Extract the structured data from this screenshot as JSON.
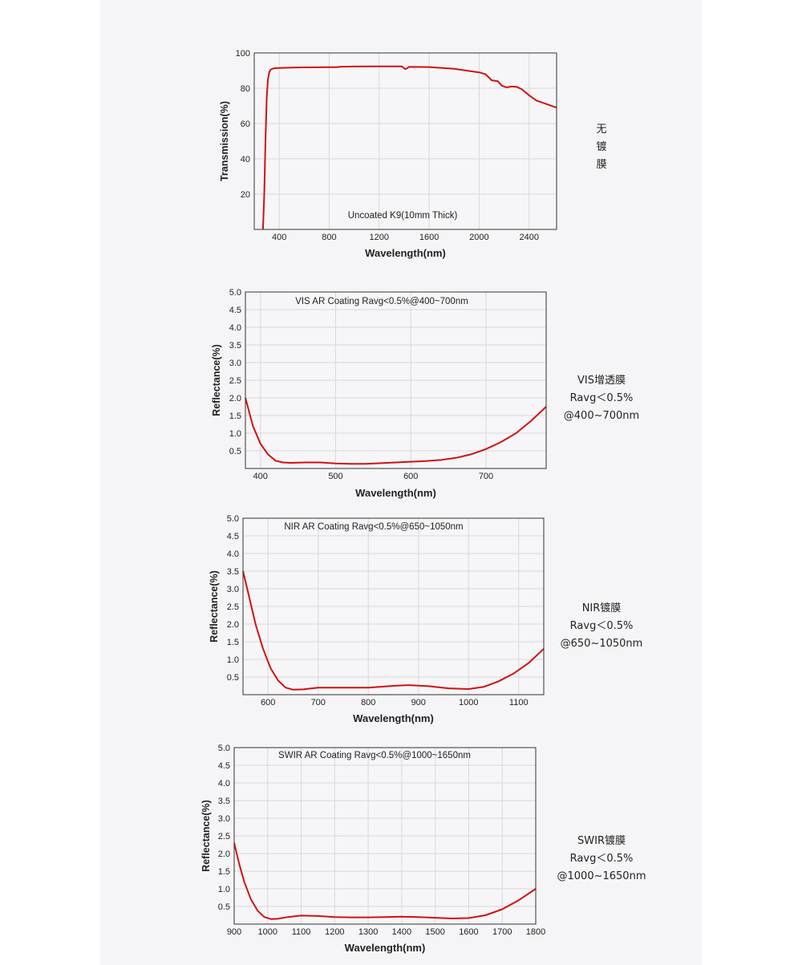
{
  "colors": {
    "panel": "#f5f5f7",
    "plot_bg": "#f6f6f8",
    "grid": "#d8d8dc",
    "series": "#d31010",
    "frame": "#333333"
  },
  "sections": [
    {
      "side_label": [
        "无",
        "镀",
        "膜"
      ]
    },
    {
      "side_label": [
        "VIS增透膜",
        "Ravg＜0.5%",
        "@400~700nm"
      ]
    },
    {
      "side_label": [
        "NIR镀膜",
        "Ravg＜0.5%",
        "@650~1050nm"
      ]
    },
    {
      "side_label": [
        "SWIR镀膜",
        "Ravg＜0.5%",
        "@1000~1650nm"
      ]
    }
  ],
  "chart_data": [
    {
      "type": "line",
      "title": "Uncoated K9(10mm Thick)",
      "xlabel": "Wavelength(nm)",
      "ylabel": "Transmission(%)",
      "xlim": [
        200,
        2620
      ],
      "ylim": [
        0,
        100
      ],
      "xticks": [
        400,
        800,
        1200,
        1600,
        2000,
        2400
      ],
      "xtick_labels": [
        "400",
        "800",
        "1200",
        "1600",
        "2000",
        "2400"
      ],
      "yticks": [
        20,
        40,
        60,
        80,
        100
      ],
      "ytick_labels": [
        "20",
        "40",
        "60",
        "80",
        "100"
      ],
      "grid": true,
      "series": [
        {
          "name": "Uncoated K9",
          "x": [
            270,
            280,
            290,
            300,
            310,
            320,
            330,
            345,
            360,
            400,
            500,
            600,
            800,
            870,
            880,
            1000,
            1200,
            1380,
            1410,
            1440,
            1600,
            1800,
            1900,
            2000,
            2050,
            2080,
            2100,
            2150,
            2180,
            2220,
            2260,
            2300,
            2340,
            2400,
            2460,
            2520,
            2620
          ],
          "y": [
            0,
            20,
            50,
            75,
            85,
            89,
            90.5,
            91,
            91.3,
            91.5,
            91.7,
            91.8,
            91.9,
            91.9,
            92.2,
            92.3,
            92.4,
            92.4,
            90.8,
            92.1,
            92,
            91,
            90,
            89,
            88,
            86,
            84.5,
            84,
            81.5,
            80.5,
            81,
            80.8,
            79.5,
            76,
            73,
            71.5,
            69
          ]
        }
      ]
    },
    {
      "type": "line",
      "title": "VIS AR Coating Ravg<0.5%@400~700nm",
      "xlabel": "Wavelength(nm)",
      "ylabel": "Reflectance(%)",
      "xlim": [
        380,
        780
      ],
      "ylim": [
        0,
        5
      ],
      "xticks": [
        400,
        500,
        600,
        700
      ],
      "xtick_labels": [
        "400",
        "500",
        "600",
        "700"
      ],
      "yticks": [
        0.5,
        1.0,
        1.5,
        2.0,
        2.5,
        3.0,
        3.5,
        4.0,
        4.5,
        5.0
      ],
      "ytick_labels": [
        "0.5",
        "1.0",
        "1.5",
        "2.0",
        "2.5",
        "3.0",
        "3.5",
        "4.0",
        "4.5",
        "5.0"
      ],
      "grid": true,
      "series": [
        {
          "name": "VIS AR",
          "x": [
            380,
            390,
            400,
            410,
            420,
            430,
            440,
            460,
            480,
            500,
            520,
            540,
            560,
            580,
            600,
            620,
            640,
            660,
            680,
            700,
            720,
            740,
            760,
            780
          ],
          "y": [
            2.0,
            1.2,
            0.7,
            0.4,
            0.22,
            0.17,
            0.16,
            0.17,
            0.17,
            0.14,
            0.13,
            0.13,
            0.15,
            0.17,
            0.19,
            0.21,
            0.24,
            0.3,
            0.4,
            0.55,
            0.75,
            1.0,
            1.35,
            1.75
          ]
        }
      ]
    },
    {
      "type": "line",
      "title": "NIR AR Coating Ravg<0.5%@650~1050nm",
      "xlabel": "Wavelength(nm)",
      "ylabel": "Reflectance(%)",
      "xlim": [
        550,
        1150
      ],
      "ylim": [
        0,
        5
      ],
      "xticks": [
        600,
        700,
        800,
        900,
        1000,
        1100
      ],
      "xtick_labels": [
        "600",
        "700",
        "800",
        "900",
        "1000",
        "1100"
      ],
      "yticks": [
        0.5,
        1.0,
        1.5,
        2.0,
        2.5,
        3.0,
        3.5,
        4.0,
        4.5,
        5.0
      ],
      "ytick_labels": [
        "0.5",
        "1.0",
        "1.5",
        "2.0",
        "2.5",
        "3.0",
        "3.5",
        "4.0",
        "4.5",
        "5.0"
      ],
      "grid": true,
      "series": [
        {
          "name": "NIR AR",
          "x": [
            550,
            560,
            575,
            590,
            605,
            620,
            635,
            650,
            670,
            700,
            750,
            800,
            850,
            880,
            920,
            960,
            1000,
            1030,
            1060,
            1090,
            1120,
            1150
          ],
          "y": [
            3.5,
            2.9,
            2.0,
            1.3,
            0.75,
            0.4,
            0.2,
            0.14,
            0.15,
            0.2,
            0.2,
            0.2,
            0.25,
            0.27,
            0.24,
            0.18,
            0.16,
            0.22,
            0.38,
            0.6,
            0.9,
            1.3
          ]
        }
      ]
    },
    {
      "type": "line",
      "title": "SWIR AR Coating Ravg<0.5%@1000~1650nm",
      "xlabel": "Wavelength(nm)",
      "ylabel": "Reflectance(%)",
      "xlim": [
        900,
        1800
      ],
      "ylim": [
        0,
        5
      ],
      "xticks": [
        900,
        1000,
        1100,
        1200,
        1300,
        1400,
        1500,
        1600,
        1700,
        1800
      ],
      "xtick_labels": [
        "900",
        "1000",
        "1100",
        "1200",
        "1300",
        "1400",
        "1500",
        "1600",
        "1700",
        "1800"
      ],
      "yticks": [
        0.5,
        1.0,
        1.5,
        2.0,
        2.5,
        3.0,
        3.5,
        4.0,
        4.5,
        5.0
      ],
      "ytick_labels": [
        "0.5",
        "1.0",
        "1.5",
        "2.0",
        "2.5",
        "3.0",
        "3.5",
        "4.0",
        "4.5",
        "5.0"
      ],
      "grid": true,
      "series": [
        {
          "name": "SWIR AR",
          "x": [
            900,
            915,
            930,
            950,
            970,
            990,
            1010,
            1030,
            1060,
            1100,
            1150,
            1200,
            1250,
            1300,
            1350,
            1400,
            1450,
            1500,
            1550,
            1600,
            1650,
            1700,
            1750,
            1800
          ],
          "y": [
            2.3,
            1.7,
            1.2,
            0.7,
            0.38,
            0.2,
            0.14,
            0.15,
            0.2,
            0.24,
            0.23,
            0.2,
            0.19,
            0.19,
            0.2,
            0.21,
            0.2,
            0.18,
            0.16,
            0.17,
            0.25,
            0.42,
            0.68,
            1.0
          ]
        }
      ]
    }
  ]
}
